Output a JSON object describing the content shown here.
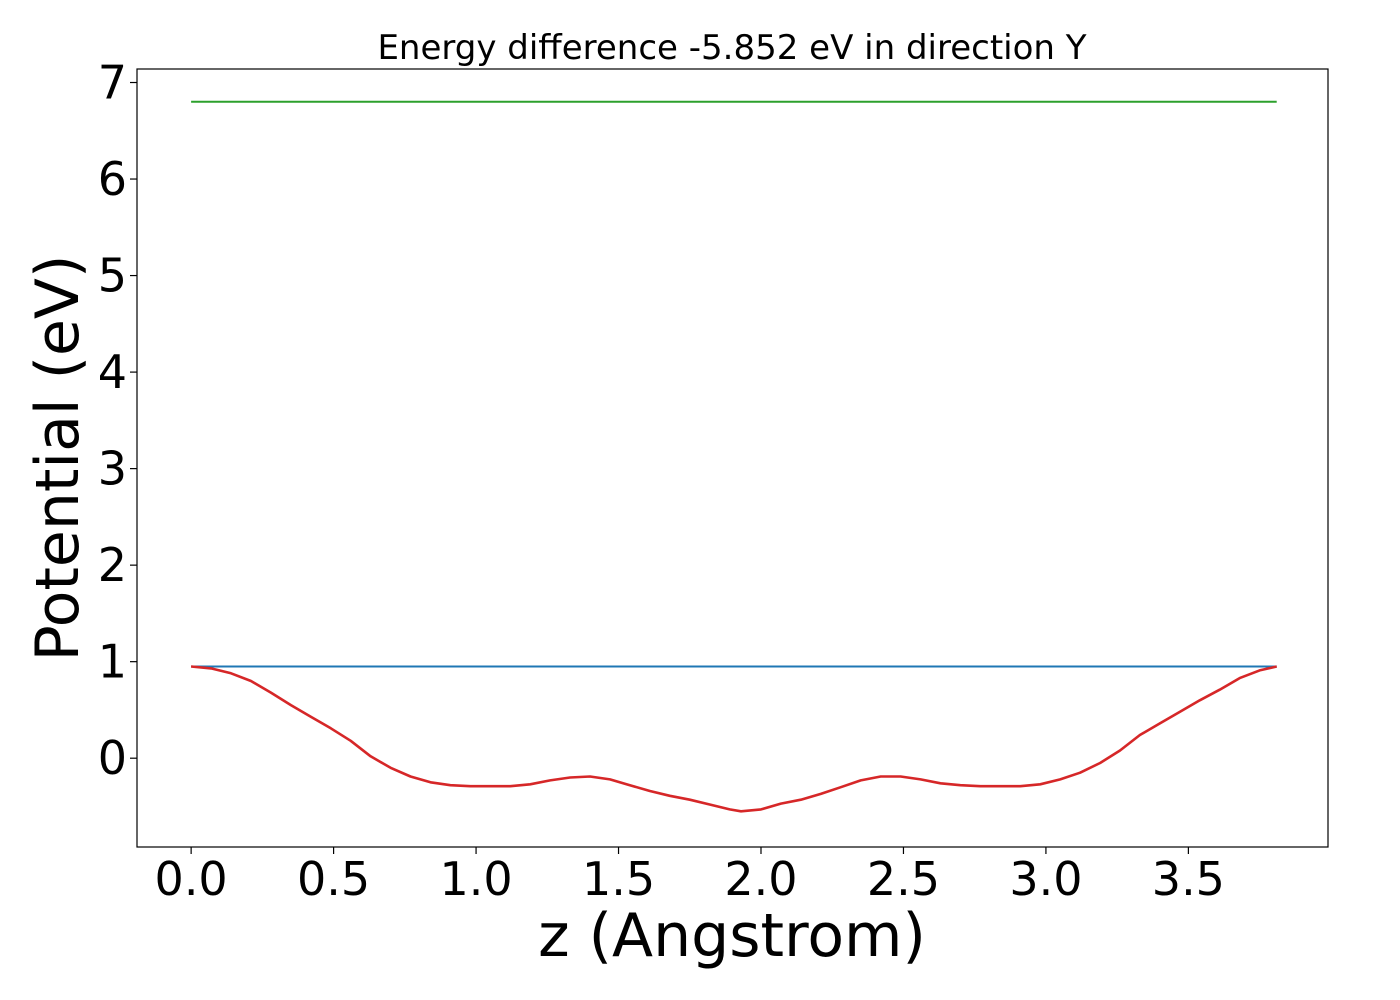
{
  "chart_data": {
    "type": "line",
    "title": "Energy difference -5.852 eV in direction Y",
    "xlabel": "z (Angstrom)",
    "ylabel": "Potential (eV)",
    "xlim": [
      -0.19,
      3.99
    ],
    "ylim": [
      -0.92,
      7.14
    ],
    "xticks": [
      "0.0",
      "0.5",
      "1.0",
      "1.5",
      "2.0",
      "2.5",
      "3.0",
      "3.5"
    ],
    "yticks": [
      "0",
      "1",
      "2",
      "3",
      "4",
      "5",
      "6",
      "7"
    ],
    "grid": false,
    "series": [
      {
        "color": "#2ca02c",
        "x": [
          0.0,
          3.81
        ],
        "y": [
          6.8,
          6.8
        ]
      },
      {
        "color": "#1f77b4",
        "x": [
          0.0,
          3.81
        ],
        "y": [
          0.95,
          0.95
        ]
      },
      {
        "color": "#d62728",
        "x": [
          0.0,
          0.07,
          0.14,
          0.21,
          0.28,
          0.35,
          0.42,
          0.49,
          0.56,
          0.63,
          0.7,
          0.77,
          0.84,
          0.91,
          0.98,
          1.05,
          1.12,
          1.19,
          1.26,
          1.33,
          1.4,
          1.47,
          1.54,
          1.61,
          1.68,
          1.75,
          1.82,
          1.89,
          1.93,
          2.0,
          2.07,
          2.14,
          2.21,
          2.28,
          2.35,
          2.42,
          2.49,
          2.56,
          2.63,
          2.7,
          2.77,
          2.84,
          2.91,
          2.98,
          3.05,
          3.12,
          3.19,
          3.26,
          3.33,
          3.4,
          3.47,
          3.54,
          3.61,
          3.68,
          3.75,
          3.81
        ],
        "y": [
          0.95,
          0.93,
          0.88,
          0.8,
          0.68,
          0.55,
          0.43,
          0.31,
          0.18,
          0.02,
          -0.1,
          -0.19,
          -0.25,
          -0.28,
          -0.29,
          -0.29,
          -0.29,
          -0.27,
          -0.23,
          -0.2,
          -0.19,
          -0.22,
          -0.28,
          -0.34,
          -0.39,
          -0.43,
          -0.48,
          -0.53,
          -0.55,
          -0.53,
          -0.47,
          -0.43,
          -0.37,
          -0.3,
          -0.23,
          -0.19,
          -0.19,
          -0.22,
          -0.26,
          -0.28,
          -0.29,
          -0.29,
          -0.29,
          -0.27,
          -0.22,
          -0.15,
          -0.05,
          0.08,
          0.24,
          0.36,
          0.48,
          0.6,
          0.71,
          0.83,
          0.91,
          0.95
        ]
      }
    ]
  }
}
